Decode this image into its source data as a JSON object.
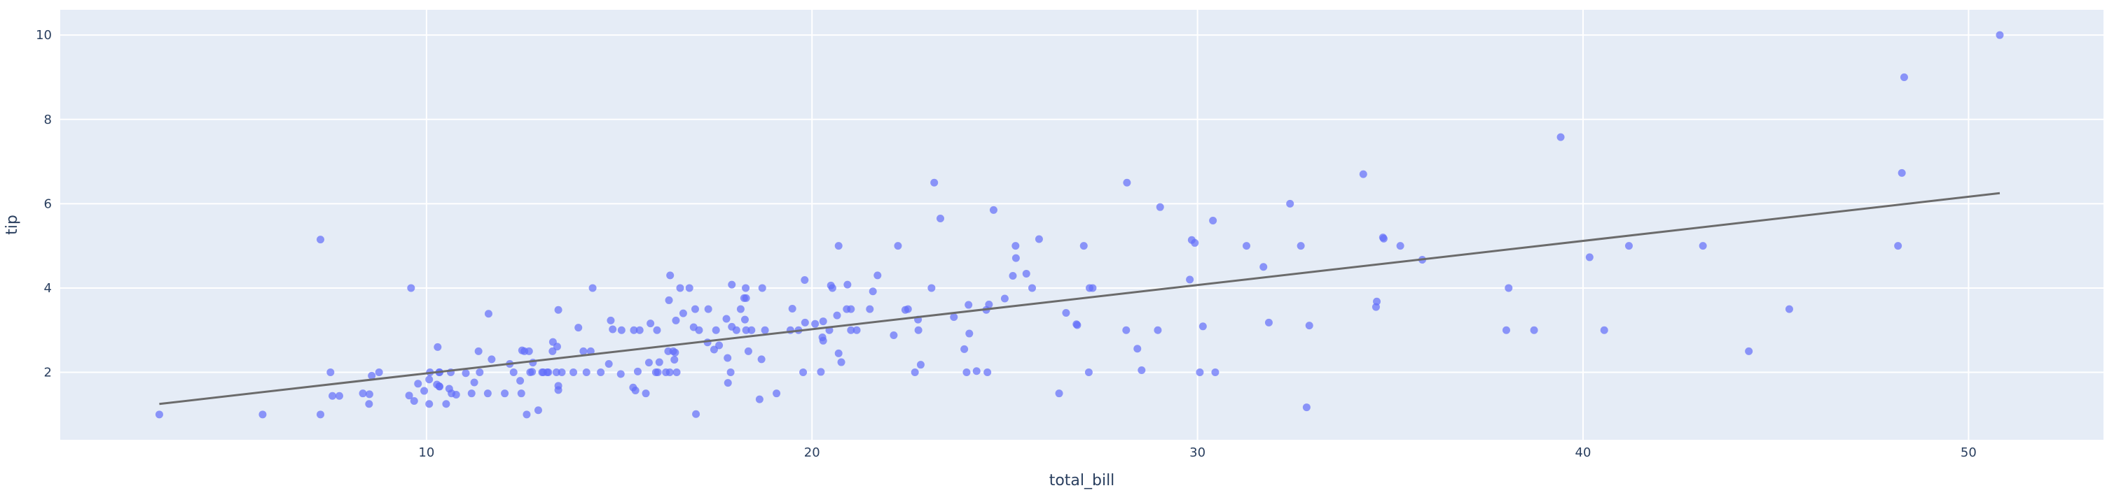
{
  "chart_data": {
    "type": "scatter",
    "title": "",
    "xlabel": "total_bill",
    "ylabel": "tip",
    "xlim": [
      0.5,
      53.5
    ],
    "ylim": [
      0.4,
      10.6
    ],
    "x_ticks": [
      10,
      20,
      30,
      40,
      50
    ],
    "y_ticks": [
      2,
      4,
      6,
      8,
      10
    ],
    "grid": true,
    "colors": {
      "plot_bg": "#e5ecf6",
      "grid": "#ffffff",
      "marker": "#636efa",
      "trendline": "#6b6b6b",
      "text": "#2a3f5f"
    },
    "trendline": {
      "x": [
        3.07,
        50.81
      ],
      "y": [
        1.25,
        6.25
      ]
    },
    "points": [
      [
        3.07,
        1.0
      ],
      [
        5.75,
        1.0
      ],
      [
        7.25,
        1.0
      ],
      [
        7.25,
        5.15
      ],
      [
        7.51,
        2.0
      ],
      [
        7.56,
        1.44
      ],
      [
        7.74,
        1.44
      ],
      [
        8.35,
        1.5
      ],
      [
        8.51,
        1.25
      ],
      [
        8.52,
        1.48
      ],
      [
        8.58,
        1.92
      ],
      [
        8.77,
        2.0
      ],
      [
        9.55,
        1.45
      ],
      [
        9.6,
        4.0
      ],
      [
        9.68,
        1.32
      ],
      [
        9.78,
        1.73
      ],
      [
        9.94,
        1.56
      ],
      [
        10.07,
        1.83
      ],
      [
        10.07,
        1.25
      ],
      [
        10.09,
        2.0
      ],
      [
        10.27,
        1.71
      ],
      [
        10.29,
        2.6
      ],
      [
        10.33,
        1.67
      ],
      [
        10.33,
        2.0
      ],
      [
        10.34,
        1.66
      ],
      [
        10.34,
        2.0
      ],
      [
        10.51,
        1.25
      ],
      [
        10.59,
        1.61
      ],
      [
        10.63,
        2.0
      ],
      [
        10.65,
        1.5
      ],
      [
        10.77,
        1.47
      ],
      [
        11.02,
        1.98
      ],
      [
        11.17,
        1.5
      ],
      [
        11.24,
        1.76
      ],
      [
        11.35,
        2.5
      ],
      [
        11.38,
        2.0
      ],
      [
        11.59,
        1.5
      ],
      [
        11.61,
        3.39
      ],
      [
        11.69,
        2.31
      ],
      [
        12.03,
        1.5
      ],
      [
        12.16,
        2.2
      ],
      [
        12.26,
        2.0
      ],
      [
        12.43,
        1.8
      ],
      [
        12.46,
        1.5
      ],
      [
        12.48,
        2.52
      ],
      [
        12.54,
        2.5
      ],
      [
        12.6,
        1.0
      ],
      [
        12.66,
        2.5
      ],
      [
        12.69,
        2.0
      ],
      [
        12.74,
        2.01
      ],
      [
        12.76,
        2.23
      ],
      [
        12.9,
        1.1
      ],
      [
        13.0,
        2.0
      ],
      [
        13.03,
        2.0
      ],
      [
        13.13,
        2.0
      ],
      [
        13.16,
        2.0
      ],
      [
        13.27,
        2.5
      ],
      [
        13.28,
        2.72
      ],
      [
        13.37,
        2.0
      ],
      [
        13.39,
        2.61
      ],
      [
        13.42,
        3.48
      ],
      [
        13.42,
        1.68
      ],
      [
        13.42,
        1.58
      ],
      [
        13.51,
        2.0
      ],
      [
        13.81,
        2.0
      ],
      [
        13.94,
        3.06
      ],
      [
        14.07,
        2.5
      ],
      [
        14.15,
        2.0
      ],
      [
        14.26,
        2.5
      ],
      [
        14.31,
        4.0
      ],
      [
        14.52,
        2.0
      ],
      [
        14.73,
        2.2
      ],
      [
        14.78,
        3.23
      ],
      [
        14.83,
        3.02
      ],
      [
        15.04,
        1.96
      ],
      [
        15.06,
        3.0
      ],
      [
        15.36,
        1.64
      ],
      [
        15.38,
        3.0
      ],
      [
        15.42,
        1.57
      ],
      [
        15.48,
        2.02
      ],
      [
        15.53,
        3.0
      ],
      [
        15.69,
        1.5
      ],
      [
        15.77,
        2.23
      ],
      [
        15.81,
        3.16
      ],
      [
        15.95,
        2.0
      ],
      [
        15.98,
        3.0
      ],
      [
        16.0,
        2.0
      ],
      [
        16.04,
        2.24
      ],
      [
        16.21,
        2.0
      ],
      [
        16.27,
        2.5
      ],
      [
        16.29,
        3.71
      ],
      [
        16.31,
        2.0
      ],
      [
        16.32,
        4.3
      ],
      [
        16.4,
        2.5
      ],
      [
        16.43,
        2.3
      ],
      [
        16.45,
        2.47
      ],
      [
        16.47,
        3.23
      ],
      [
        16.49,
        2.0
      ],
      [
        16.58,
        4.0
      ],
      [
        16.66,
        3.4
      ],
      [
        16.82,
        4.0
      ],
      [
        16.93,
        3.07
      ],
      [
        16.97,
        3.5
      ],
      [
        16.99,
        1.01
      ],
      [
        17.07,
        3.0
      ],
      [
        17.29,
        2.71
      ],
      [
        17.31,
        3.5
      ],
      [
        17.46,
        2.54
      ],
      [
        17.51,
        3.0
      ],
      [
        17.59,
        2.64
      ],
      [
        17.78,
        3.27
      ],
      [
        17.81,
        2.34
      ],
      [
        17.82,
        1.75
      ],
      [
        17.89,
        2.0
      ],
      [
        17.92,
        4.08
      ],
      [
        17.92,
        3.08
      ],
      [
        18.04,
        3.0
      ],
      [
        18.15,
        3.5
      ],
      [
        18.24,
        3.76
      ],
      [
        18.26,
        3.25
      ],
      [
        18.28,
        4.0
      ],
      [
        18.29,
        3.0
      ],
      [
        18.29,
        3.76
      ],
      [
        18.35,
        2.5
      ],
      [
        18.43,
        3.0
      ],
      [
        18.64,
        1.36
      ],
      [
        18.69,
        2.31
      ],
      [
        18.71,
        4.0
      ],
      [
        18.78,
        3.0
      ],
      [
        19.08,
        1.5
      ],
      [
        19.44,
        3.0
      ],
      [
        19.49,
        3.51
      ],
      [
        19.65,
        3.0
      ],
      [
        19.77,
        2.0
      ],
      [
        19.81,
        4.19
      ],
      [
        19.82,
        3.18
      ],
      [
        20.08,
        3.15
      ],
      [
        20.23,
        2.01
      ],
      [
        20.27,
        2.83
      ],
      [
        20.29,
        3.21
      ],
      [
        20.29,
        2.75
      ],
      [
        20.45,
        3.0
      ],
      [
        20.49,
        4.06
      ],
      [
        20.53,
        4.0
      ],
      [
        20.65,
        3.35
      ],
      [
        20.69,
        2.45
      ],
      [
        20.69,
        5.0
      ],
      [
        20.76,
        2.24
      ],
      [
        20.9,
        3.5
      ],
      [
        20.92,
        4.08
      ],
      [
        21.01,
        3.5
      ],
      [
        21.01,
        3.0
      ],
      [
        21.16,
        3.0
      ],
      [
        21.5,
        3.5
      ],
      [
        21.58,
        3.92
      ],
      [
        21.7,
        4.3
      ],
      [
        22.12,
        2.88
      ],
      [
        22.23,
        5.0
      ],
      [
        22.42,
        3.48
      ],
      [
        22.49,
        3.5
      ],
      [
        22.67,
        2.0
      ],
      [
        22.75,
        3.25
      ],
      [
        22.76,
        3.0
      ],
      [
        22.82,
        2.18
      ],
      [
        23.1,
        4.0
      ],
      [
        23.17,
        6.5
      ],
      [
        23.33,
        5.65
      ],
      [
        23.68,
        3.31
      ],
      [
        23.95,
        2.55
      ],
      [
        24.01,
        2.0
      ],
      [
        24.06,
        3.6
      ],
      [
        24.08,
        2.92
      ],
      [
        24.27,
        2.03
      ],
      [
        24.52,
        3.48
      ],
      [
        24.55,
        2.0
      ],
      [
        24.59,
        3.61
      ],
      [
        24.71,
        5.85
      ],
      [
        25.0,
        3.75
      ],
      [
        25.21,
        4.29
      ],
      [
        25.28,
        5.0
      ],
      [
        25.29,
        4.71
      ],
      [
        25.56,
        4.34
      ],
      [
        25.71,
        4.0
      ],
      [
        25.89,
        5.16
      ],
      [
        26.41,
        1.5
      ],
      [
        26.59,
        3.41
      ],
      [
        26.86,
        3.14
      ],
      [
        26.88,
        3.12
      ],
      [
        27.05,
        5.0
      ],
      [
        27.18,
        2.0
      ],
      [
        27.2,
        4.0
      ],
      [
        27.28,
        4.0
      ],
      [
        28.15,
        3.0
      ],
      [
        28.17,
        6.5
      ],
      [
        28.44,
        2.56
      ],
      [
        28.55,
        2.05
      ],
      [
        28.97,
        3.0
      ],
      [
        29.03,
        5.92
      ],
      [
        29.8,
        4.2
      ],
      [
        29.85,
        5.14
      ],
      [
        29.93,
        5.07
      ],
      [
        30.06,
        2.0
      ],
      [
        30.14,
        3.09
      ],
      [
        30.4,
        5.6
      ],
      [
        30.46,
        2.0
      ],
      [
        31.27,
        5.0
      ],
      [
        31.71,
        4.5
      ],
      [
        31.85,
        3.18
      ],
      [
        32.4,
        6.0
      ],
      [
        32.68,
        5.0
      ],
      [
        32.83,
        1.17
      ],
      [
        32.9,
        3.11
      ],
      [
        34.3,
        6.7
      ],
      [
        34.63,
        3.55
      ],
      [
        34.65,
        3.68
      ],
      [
        34.81,
        5.2
      ],
      [
        34.83,
        5.17
      ],
      [
        35.26,
        5.0
      ],
      [
        35.83,
        4.67
      ],
      [
        38.01,
        3.0
      ],
      [
        38.07,
        4.0
      ],
      [
        38.73,
        3.0
      ],
      [
        39.42,
        7.58
      ],
      [
        40.17,
        4.73
      ],
      [
        40.55,
        3.0
      ],
      [
        41.19,
        5.0
      ],
      [
        43.11,
        5.0
      ],
      [
        44.3,
        2.5
      ],
      [
        45.35,
        3.5
      ],
      [
        48.17,
        5.0
      ],
      [
        48.27,
        6.73
      ],
      [
        48.33,
        9.0
      ],
      [
        50.81,
        10.0
      ]
    ]
  }
}
